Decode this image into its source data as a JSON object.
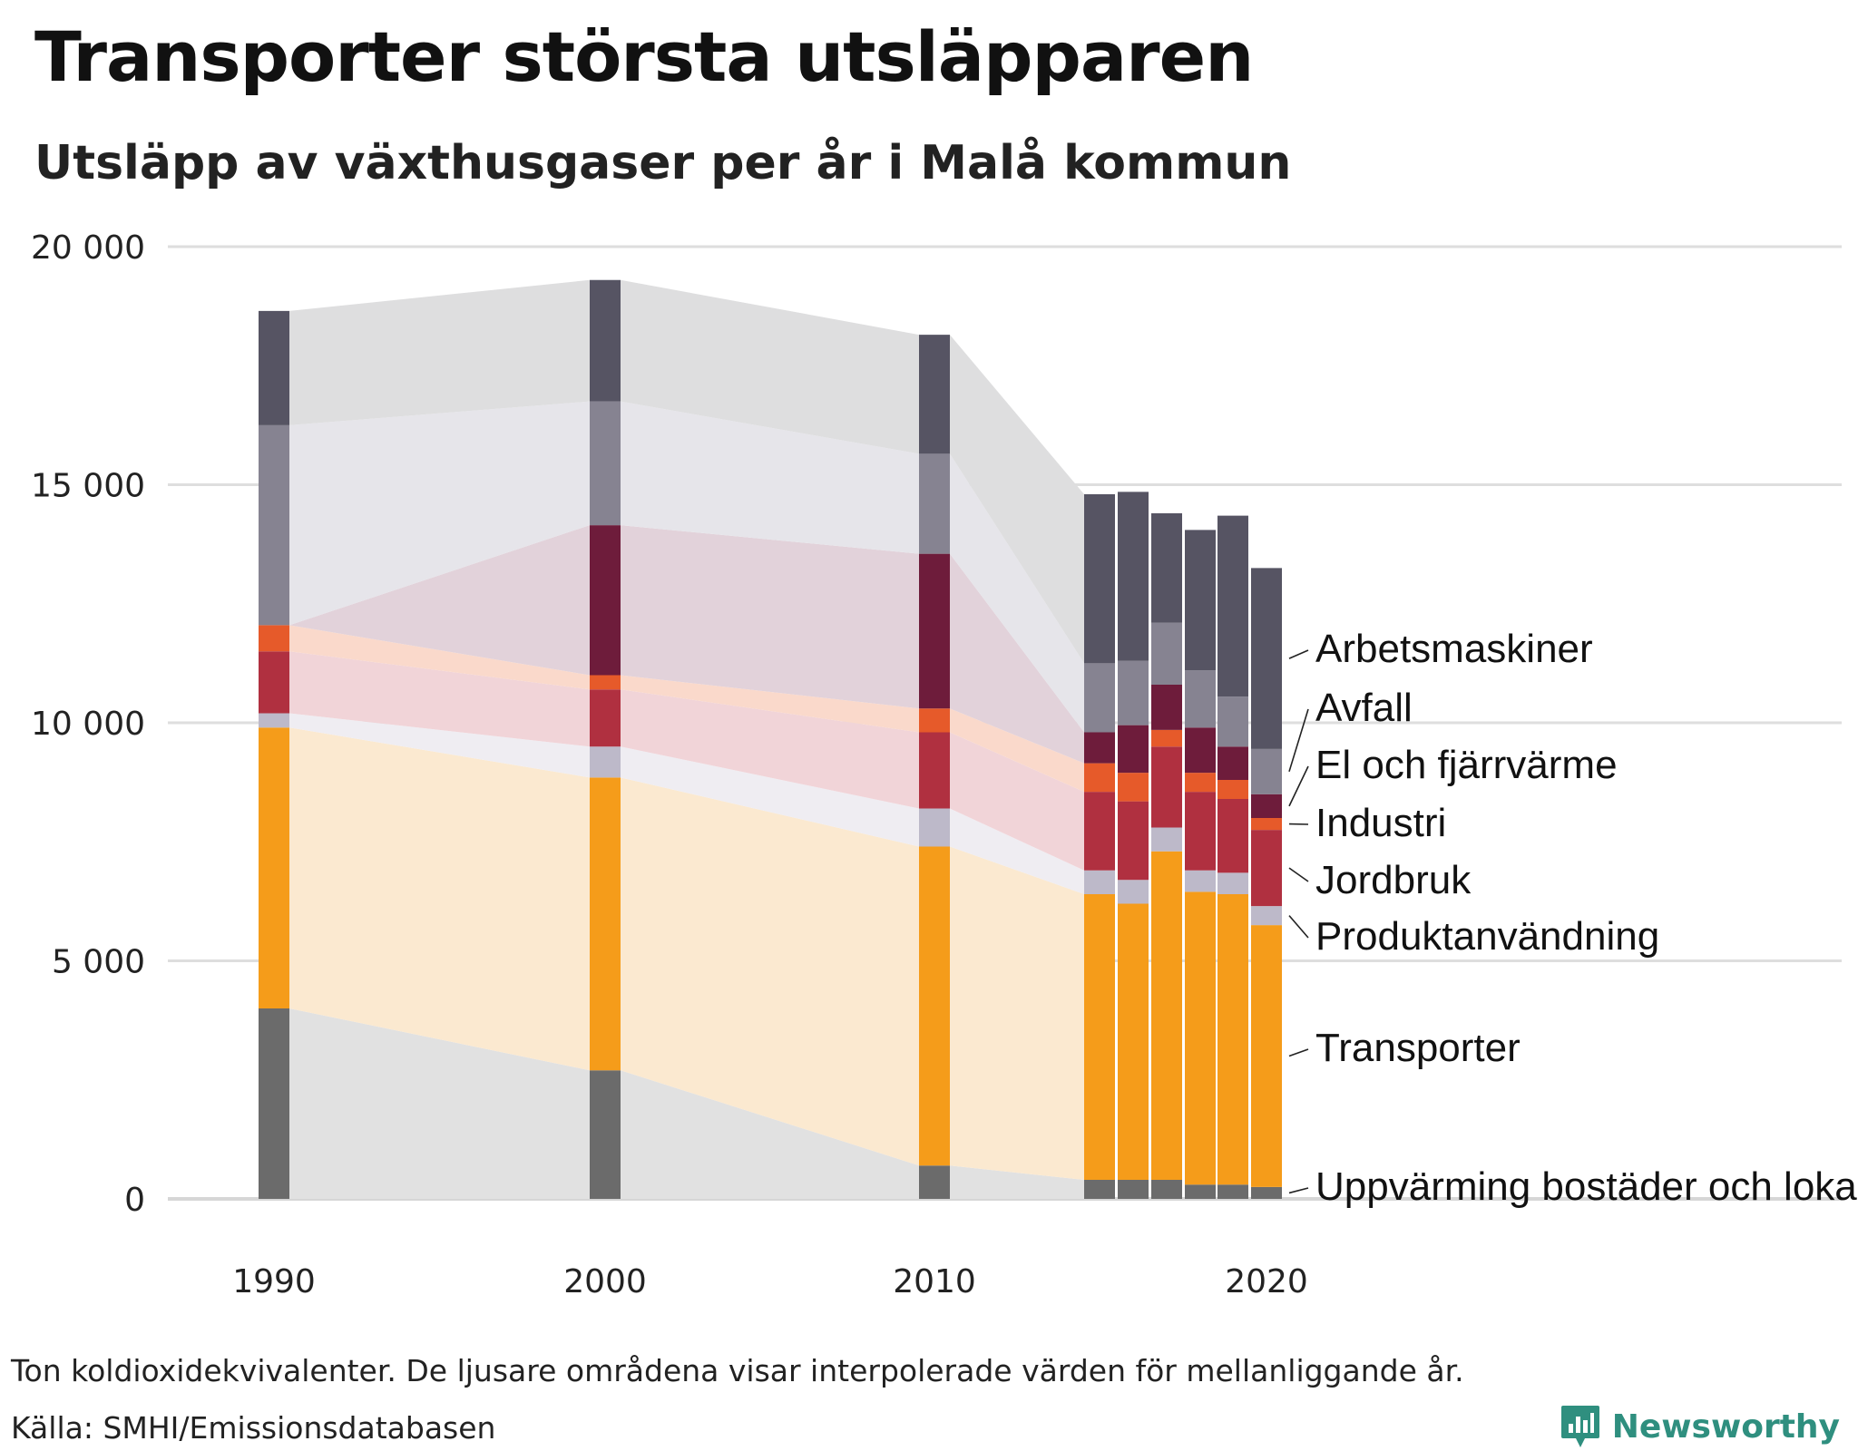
{
  "title": "Transporter största utsläpparen",
  "subtitle": "Utsläpp av växthusgaser per år i Malå kommun",
  "footnote": "Ton koldioxidekvivalenter. De ljusare områdena visar interpolerade värden för mellanliggande år.",
  "source": "Källa: SMHI/Emissionsdatabasen",
  "brand": {
    "name": "Newsworthy",
    "icon": "newsworthy-logo-icon",
    "color": "#2f8f7f"
  },
  "chart_data": {
    "type": "bar",
    "stacked": true,
    "title": "Transporter största utsläpparen",
    "subtitle": "Utsläpp av växthusgaser per år i Malå kommun",
    "unit": "Ton koldioxidekvivalenter",
    "ylim": [
      0,
      20000
    ],
    "yticks": [
      0,
      5000,
      10000,
      15000,
      20000
    ],
    "ytick_labels": [
      "0",
      "5 000",
      "10 000",
      "15 000",
      "20 000"
    ],
    "xticks": [
      1990,
      2000,
      2010,
      2020
    ],
    "xtick_labels": [
      "1990",
      "2000",
      "2010",
      "2020"
    ],
    "years": [
      1990,
      2000,
      2010,
      2015,
      2016,
      2017,
      2018,
      2019,
      2020
    ],
    "interpolated_areas": true,
    "grid": true,
    "series": [
      {
        "name": "Uppvärming bostäder och lokaler",
        "color": "#6b6b6b",
        "area_color": "#e1e1e1",
        "values": [
          4000,
          2700,
          700,
          400,
          400,
          400,
          300,
          300,
          250
        ]
      },
      {
        "name": "Transporter",
        "color": "#f59c1a",
        "area_color": "#fbe9d0",
        "values": [
          5900,
          6150,
          6700,
          6000,
          5800,
          6900,
          6150,
          6100,
          5500
        ]
      },
      {
        "name": "Produktanvändning",
        "color": "#bdb9c9",
        "area_color": "#efedf2",
        "values": [
          300,
          650,
          800,
          500,
          500,
          500,
          450,
          450,
          400
        ]
      },
      {
        "name": "Jordbruk",
        "color": "#b03040",
        "area_color": "#f1d4d8",
        "values": [
          1300,
          1200,
          1600,
          1650,
          1650,
          1700,
          1650,
          1550,
          1600
        ]
      },
      {
        "name": "Industri",
        "color": "#e65a2a",
        "area_color": "#fad9cb",
        "values": [
          550,
          300,
          500,
          600,
          600,
          350,
          400,
          400,
          250
        ]
      },
      {
        "name": "El och fjärrvärme",
        "color": "#6e1c3b",
        "area_color": "#e2d2da",
        "values": [
          0,
          3150,
          3250,
          650,
          1000,
          950,
          950,
          700,
          500
        ]
      },
      {
        "name": "Avfall",
        "color": "#868391",
        "area_color": "#e6e5ea",
        "values": [
          4200,
          2600,
          2100,
          1450,
          1350,
          1300,
          1200,
          1050,
          950
        ]
      },
      {
        "name": "Arbetsmaskiner",
        "color": "#565463",
        "area_color": "#dededf",
        "values": [
          2400,
          2550,
          2500,
          3550,
          3550,
          2300,
          2950,
          3800,
          3800
        ]
      }
    ]
  }
}
